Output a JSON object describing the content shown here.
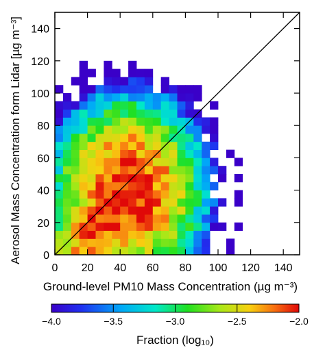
{
  "chart_data": {
    "type": "heatmap",
    "xlabel": "Ground-level  PM10 Mass Concentration",
    "xlabel_unit": "(µg m⁻³)",
    "ylabel": "Aerosol Mass Concentration form Lidar",
    "ylabel_unit": "[µg m⁻³]",
    "xlim": [
      0,
      150
    ],
    "ylim": [
      0,
      150
    ],
    "x_ticks": [
      "0",
      "20",
      "40",
      "60",
      "80",
      "100",
      "120",
      "140"
    ],
    "y_ticks": [
      "0",
      "20",
      "40",
      "60",
      "80",
      "100",
      "120",
      "140"
    ],
    "bin_size": 5,
    "one_to_one_line": true,
    "grid": false,
    "colorbar": {
      "label": "Fraction (log₁₀)",
      "range": [
        -4.0,
        -2.0
      ],
      "tick_labels": [
        "−4.0",
        "−3.5",
        "−3.0",
        "−2.5",
        "−2.0"
      ],
      "tick_values": [
        -4.0,
        -3.5,
        -3.0,
        -2.5,
        -2.0
      ],
      "placement": "bottom",
      "colormap": "rainbow (blue → cyan → green → yellow → red)"
    },
    "distribution": {
      "peak_x": 32,
      "peak_y": 23,
      "peak_value": -2.0,
      "min_value": -4.0,
      "description_only": false
    },
    "colors": {
      "low": "#2a10d8",
      "mid_low": "#00b8f0",
      "mid": "#10e040",
      "mid_high": "#f0d818",
      "high": "#e81810"
    }
  }
}
